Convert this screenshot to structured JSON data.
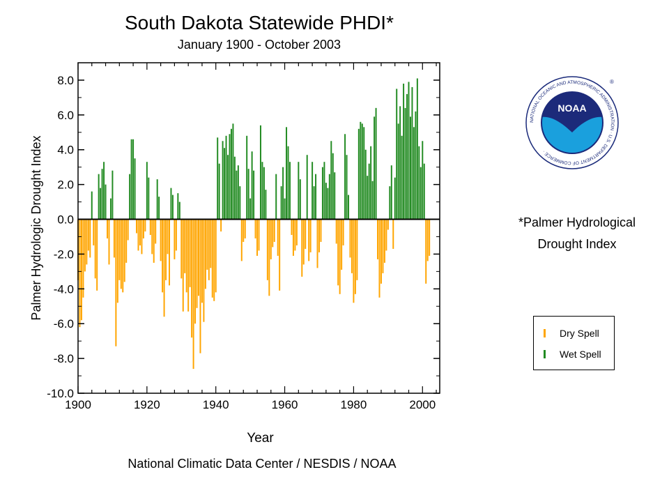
{
  "colors": {
    "dry": "#FFA500",
    "wet": "#228B22",
    "axis": "#000000"
  },
  "note": {
    "line1": "*Palmer Hydrological",
    "line2": "Drought Index"
  },
  "logo": {
    "name": "noaa-logo",
    "text": "NOAA",
    "ring_text": "NATIONAL OCEANIC AND ATMOSPHERIC ADMINISTRATION · U.S. DEPARTMENT OF COMMERCE ·"
  },
  "chart_data": {
    "type": "bar",
    "title": "South Dakota Statewide PHDI*",
    "subtitle": "January 1900 - October 2003",
    "xlabel": "Year",
    "ylabel": "Palmer Hydrologic Drought Index",
    "source": "National Climatic Data Center / NESDIS / NOAA",
    "xlim": [
      1900,
      2005
    ],
    "ylim": [
      -10,
      9
    ],
    "xticks": [
      1900,
      1920,
      1940,
      1960,
      1980,
      2000
    ],
    "xtick_labels": [
      "1900",
      "1920",
      "1940",
      "1960",
      "1980",
      "2000"
    ],
    "yticks": [
      -10,
      -8,
      -6,
      -4,
      -2,
      0,
      2,
      4,
      6,
      8
    ],
    "ytick_labels": [
      "-10.0",
      "-8.0",
      "-6.0",
      "-4.0",
      "-2.0",
      "0.0",
      "2.0",
      "4.0",
      "6.0",
      "8.0"
    ],
    "legend": {
      "position": "right",
      "entries": [
        {
          "name": "Dry Spell",
          "color": "#FFA500"
        },
        {
          "name": "Wet Spell",
          "color": "#228B22"
        }
      ]
    },
    "series": [
      {
        "name": "PHDI",
        "x_start": 1900,
        "x_step": 0.5,
        "values": [
          -3.5,
          -6.2,
          -5.8,
          -4.5,
          -3.0,
          -2.6,
          -1.8,
          -2.2,
          1.6,
          -1.5,
          -3.4,
          -4.1,
          2.6,
          1.8,
          2.9,
          3.3,
          2.0,
          -1.1,
          -2.6,
          1.2,
          2.8,
          -2.2,
          -7.3,
          -4.8,
          -3.5,
          -4.0,
          -4.2,
          -3.6,
          -2.5,
          -1.2,
          2.6,
          4.6,
          4.6,
          3.5,
          -0.8,
          -1.8,
          -1.5,
          -2.0,
          -1.1,
          -0.7,
          3.3,
          2.4,
          -0.9,
          -2.0,
          -2.5,
          -1.4,
          2.3,
          1.3,
          -2.4,
          -4.2,
          -5.6,
          -3.5,
          -2.0,
          -3.8,
          1.8,
          1.4,
          -2.3,
          -1.8,
          1.5,
          1.0,
          -3.4,
          -5.3,
          -3.1,
          -4.2,
          -5.3,
          -3.9,
          -6.8,
          -8.6,
          -6.0,
          -5.1,
          -4.4,
          -7.7,
          -4.8,
          -5.9,
          -4.0,
          -2.9,
          -3.5,
          -2.8,
          -4.5,
          -4.7,
          -4.2,
          4.7,
          3.2,
          -0.7,
          4.5,
          4.1,
          4.8,
          3.7,
          4.9,
          5.2,
          5.5,
          3.6,
          2.8,
          3.1,
          1.9,
          -2.4,
          -1.3,
          -1.1,
          4.8,
          2.9,
          1.2,
          3.9,
          2.8,
          -1.1,
          -2.1,
          -1.8,
          5.4,
          3.3,
          3.0,
          1.7,
          -3.5,
          -4.4,
          -2.3,
          -1.6,
          -1.3,
          2.6,
          -2.1,
          -4.1,
          1.9,
          3.0,
          1.2,
          5.3,
          4.2,
          3.3,
          -0.9,
          -2.1,
          -1.8,
          -1.5,
          3.3,
          2.3,
          -3.3,
          -2.6,
          -1.7,
          3.7,
          -2.4,
          -1.9,
          3.3,
          1.9,
          2.6,
          -2.8,
          -1.9,
          -1.3,
          3.0,
          3.3,
          2.1,
          1.8,
          2.6,
          4.5,
          3.8,
          2.7,
          -1.4,
          -3.8,
          -4.3,
          -2.9,
          -1.5,
          4.9,
          3.7,
          1.4,
          -2.2,
          -3.1,
          -4.8,
          -4.3,
          -3.5,
          5.2,
          5.6,
          5.5,
          5.3,
          4.0,
          2.5,
          3.2,
          4.2,
          2.2,
          5.9,
          6.4,
          -2.3,
          -4.5,
          -3.7,
          -3.1,
          -2.5,
          -1.8,
          -0.6,
          1.9,
          3.1,
          -1.7,
          2.4,
          7.5,
          5.5,
          6.5,
          4.8,
          7.8,
          6.4,
          7.2,
          7.9,
          5.9,
          7.6,
          5.3,
          6.2,
          8.1,
          4.2,
          3.0,
          4.5,
          3.2,
          -3.7,
          -2.4,
          -2.1
        ]
      }
    ]
  }
}
